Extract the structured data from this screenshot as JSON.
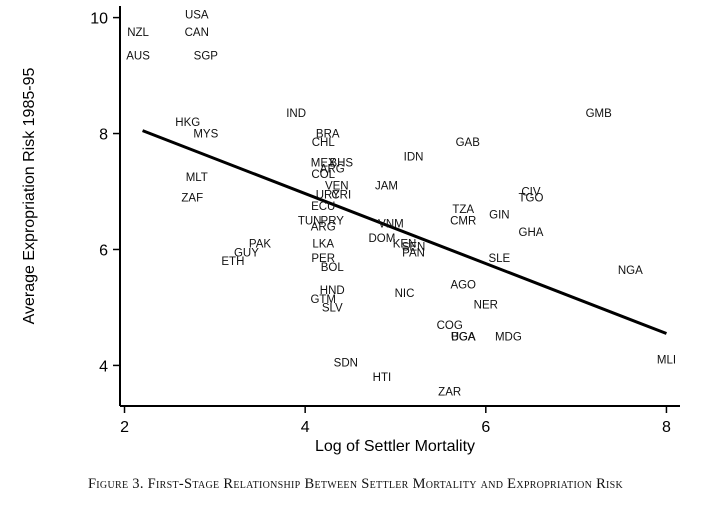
{
  "caption": "Figure 3. First-Stage Relationship Between Settler Mortality and Expropriation Risk",
  "chart_data": {
    "type": "scatter",
    "title": "",
    "xlabel": "Log of Settler Mortality",
    "ylabel": "Average Expropriation Risk 1985-95",
    "xlim": [
      1.95,
      8.15
    ],
    "ylim": [
      3.3,
      10.2
    ],
    "xticks": [
      2,
      4,
      6,
      8
    ],
    "yticks": [
      4,
      6,
      8,
      10
    ],
    "grid": false,
    "legend": "none",
    "fit_line": {
      "x": [
        2.2,
        8.0
      ],
      "y": [
        8.05,
        4.55
      ]
    },
    "points": [
      {
        "label": "USA",
        "x": 2.8,
        "y": 10.05
      },
      {
        "label": "NZL",
        "x": 2.15,
        "y": 9.75
      },
      {
        "label": "CAN",
        "x": 2.8,
        "y": 9.75
      },
      {
        "label": "AUS",
        "x": 2.15,
        "y": 9.35
      },
      {
        "label": "SGP",
        "x": 2.9,
        "y": 9.35
      },
      {
        "label": "HKG",
        "x": 2.7,
        "y": 8.2
      },
      {
        "label": "MYS",
        "x": 2.9,
        "y": 8.0
      },
      {
        "label": "IND",
        "x": 3.9,
        "y": 8.35
      },
      {
        "label": "MLT",
        "x": 2.8,
        "y": 7.25
      },
      {
        "label": "ZAF",
        "x": 2.75,
        "y": 6.9
      },
      {
        "label": "PAK",
        "x": 3.5,
        "y": 6.1
      },
      {
        "label": "GUY",
        "x": 3.35,
        "y": 5.95
      },
      {
        "label": "ETH",
        "x": 3.2,
        "y": 5.8
      },
      {
        "label": "BRA",
        "x": 4.25,
        "y": 8.0
      },
      {
        "label": "CHL",
        "x": 4.2,
        "y": 7.85
      },
      {
        "label": "MEX",
        "x": 4.2,
        "y": 7.5
      },
      {
        "label": "BHS",
        "x": 4.4,
        "y": 7.5
      },
      {
        "label": "ARG",
        "x": 4.3,
        "y": 7.4
      },
      {
        "label": "COL",
        "x": 4.2,
        "y": 7.3
      },
      {
        "label": "VEN",
        "x": 4.35,
        "y": 7.1
      },
      {
        "label": "URY",
        "x": 4.25,
        "y": 6.95
      },
      {
        "label": "CRI",
        "x": 4.4,
        "y": 6.95
      },
      {
        "label": "ECU",
        "x": 4.2,
        "y": 6.75
      },
      {
        "label": "PRY",
        "x": 4.3,
        "y": 6.5
      },
      {
        "label": "BOL",
        "x": 4.3,
        "y": 5.7
      },
      {
        "label": "TUN",
        "x": 4.05,
        "y": 6.5
      },
      {
        "label": "ARG",
        "x": 4.2,
        "y": 6.4
      },
      {
        "label": "LKA",
        "x": 4.2,
        "y": 6.1
      },
      {
        "label": "PER",
        "x": 4.2,
        "y": 5.85
      },
      {
        "label": "HND",
        "x": 4.3,
        "y": 5.3
      },
      {
        "label": "GTM",
        "x": 4.2,
        "y": 5.15
      },
      {
        "label": "SLV",
        "x": 4.3,
        "y": 5.0
      },
      {
        "label": "IDN",
        "x": 5.2,
        "y": 7.6
      },
      {
        "label": "JAM",
        "x": 4.9,
        "y": 7.1
      },
      {
        "label": "GAB",
        "x": 5.8,
        "y": 7.85
      },
      {
        "label": "VNM",
        "x": 4.95,
        "y": 6.45
      },
      {
        "label": "DOM",
        "x": 4.85,
        "y": 6.2
      },
      {
        "label": "KEN",
        "x": 5.1,
        "y": 6.1
      },
      {
        "label": "SEN",
        "x": 5.2,
        "y": 6.05
      },
      {
        "label": "PAN",
        "x": 5.2,
        "y": 5.95
      },
      {
        "label": "TZA",
        "x": 5.75,
        "y": 6.7
      },
      {
        "label": "CMR",
        "x": 5.75,
        "y": 6.5
      },
      {
        "label": "GIN",
        "x": 6.15,
        "y": 6.6
      },
      {
        "label": "GHA",
        "x": 6.5,
        "y": 6.3
      },
      {
        "label": "CIV",
        "x": 6.5,
        "y": 7.0
      },
      {
        "label": "TGO",
        "x": 6.5,
        "y": 6.9
      },
      {
        "label": "SLE",
        "x": 6.15,
        "y": 5.85
      },
      {
        "label": "AGO",
        "x": 5.75,
        "y": 5.4
      },
      {
        "label": "NIC",
        "x": 5.1,
        "y": 5.25
      },
      {
        "label": "NER",
        "x": 6.0,
        "y": 5.05
      },
      {
        "label": "COG",
        "x": 5.6,
        "y": 4.7
      },
      {
        "label": "BGA",
        "x": 5.75,
        "y": 4.5
      },
      {
        "label": "UGA",
        "x": 5.75,
        "y": 4.5
      },
      {
        "label": "MDG",
        "x": 6.25,
        "y": 4.5
      },
      {
        "label": "SDN",
        "x": 4.45,
        "y": 4.05
      },
      {
        "label": "HTI",
        "x": 4.85,
        "y": 3.8
      },
      {
        "label": "ZAR",
        "x": 5.6,
        "y": 3.55
      },
      {
        "label": "GMB",
        "x": 7.25,
        "y": 8.35
      },
      {
        "label": "NGA",
        "x": 7.6,
        "y": 5.65
      },
      {
        "label": "MLI",
        "x": 8.0,
        "y": 4.1
      }
    ]
  }
}
